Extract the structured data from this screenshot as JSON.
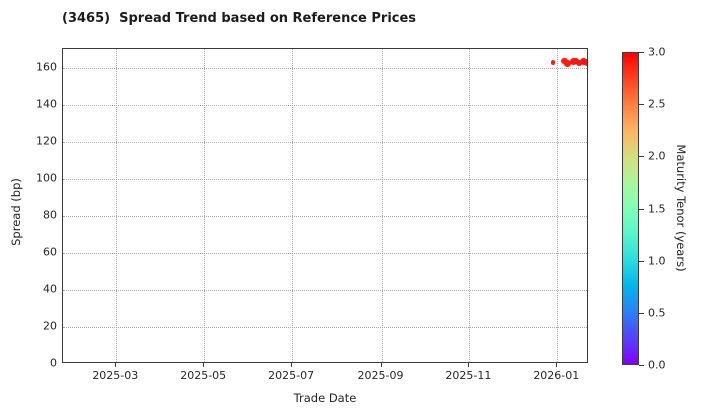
{
  "chart_data": {
    "type": "scatter",
    "title": "(3465)  Spread Trend based on Reference Prices",
    "xlabel": "Trade Date",
    "ylabel": "Spread (bp)",
    "x_axis": {
      "type": "date",
      "range": [
        "2025-01-23",
        "2026-01-23"
      ],
      "tick_labels": [
        "2025-03",
        "2025-05",
        "2025-07",
        "2025-09",
        "2025-11",
        "2026-01"
      ],
      "tick_dates": [
        "2025-03-01",
        "2025-05-01",
        "2025-07-01",
        "2025-09-01",
        "2025-11-01",
        "2026-01-01"
      ]
    },
    "y_axis": {
      "range": [
        0,
        170.5
      ],
      "ticks": [
        0,
        20,
        40,
        60,
        80,
        100,
        120,
        140,
        160
      ]
    },
    "grid": {
      "visible": true,
      "style": "dotted",
      "color": "#a6a6a6"
    },
    "points": [
      {
        "date": "2025-12-29",
        "spread_bp": 163.2,
        "tenor_years": 2.89,
        "size": 4.5
      },
      {
        "date": "2026-01-06",
        "spread_bp": 163.9,
        "tenor_years": 2.9,
        "size": 6.5
      },
      {
        "date": "2026-01-08",
        "spread_bp": 162.7,
        "tenor_years": 2.9,
        "size": 6.5
      },
      {
        "date": "2026-01-12",
        "spread_bp": 163.6,
        "tenor_years": 2.91,
        "size": 7.0
      },
      {
        "date": "2026-01-14",
        "spread_bp": 164.1,
        "tenor_years": 2.92,
        "size": 6.5
      },
      {
        "date": "2026-01-16",
        "spread_bp": 162.9,
        "tenor_years": 2.92,
        "size": 6.5
      },
      {
        "date": "2026-01-19",
        "spread_bp": 163.8,
        "tenor_years": 2.93,
        "size": 7.0
      },
      {
        "date": "2026-01-21",
        "spread_bp": 163.4,
        "tenor_years": 2.94,
        "size": 6.5
      },
      {
        "date": "2026-01-22",
        "spread_bp": 162.9,
        "tenor_years": 2.94,
        "size": 6.5
      }
    ],
    "colorbar": {
      "label": "Maturity Tenor (years)",
      "range": [
        0.0,
        3.0
      ],
      "tick_labels": [
        "0.0",
        "0.5",
        "1.0",
        "1.5",
        "2.0",
        "2.5",
        "3.0"
      ],
      "tick_values": [
        0.0,
        0.5,
        1.0,
        1.5,
        2.0,
        2.5,
        3.0
      ],
      "colormap": "rainbow",
      "gradient_stops_bottom_to_top": [
        "#8000ff",
        "#5542fd",
        "#2b80f6",
        "#00b4ec",
        "#2bdddd",
        "#55f6ca",
        "#80ffb4",
        "#aaf69b",
        "#d5dd80",
        "#ffb462",
        "#ff8042",
        "#ff4221",
        "#ff0000"
      ]
    },
    "colors": {
      "spine": "#3c3c3c",
      "grid": "#a6a6a6",
      "tick_label": "#262626",
      "title": "#1c1c1c",
      "point_hue": "#ff1a0d",
      "background": "#ffffff"
    },
    "legend": null
  }
}
